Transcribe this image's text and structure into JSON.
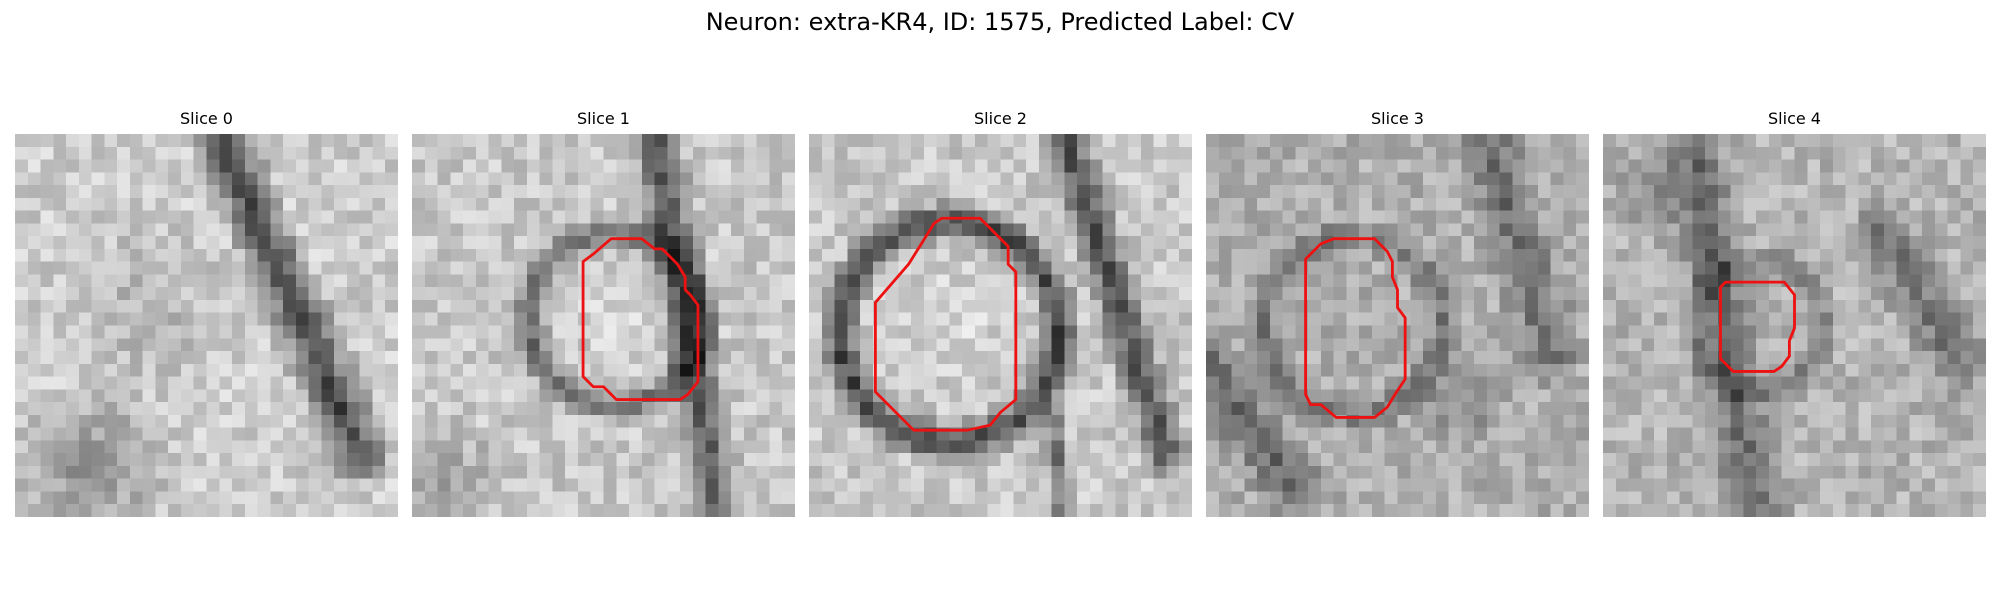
{
  "figure": {
    "title": "Neuron: extra-KR4, ID: 1575, Predicted Label: CV",
    "contour_color": "#ee1111"
  },
  "slices": [
    {
      "label": "Slice 0",
      "contour": [],
      "texture": "diagonal dark process upper right; darker blob lower left",
      "seed": 11
    },
    {
      "label": "Slice 1",
      "contour": [
        [
          14.2,
          9.4
        ],
        [
          15.6,
          8.2
        ],
        [
          18,
          8.2
        ],
        [
          19,
          9
        ],
        [
          19.6,
          9
        ],
        [
          20.8,
          10.2
        ],
        [
          21.4,
          11.2
        ],
        [
          21.4,
          12.2
        ],
        [
          21.8,
          12.6
        ],
        [
          22.4,
          13.4
        ],
        [
          22.4,
          19.4
        ],
        [
          21.6,
          20.4
        ],
        [
          21,
          20.8
        ],
        [
          16,
          20.8
        ],
        [
          15,
          19.8
        ],
        [
          14.2,
          19.8
        ],
        [
          13.4,
          19
        ],
        [
          13.4,
          10
        ]
      ],
      "texture": "bright round soma with dark rim; dark process on right",
      "seed": 23
    },
    {
      "label": "Slice 2",
      "contour": [
        [
          7.8,
          10.2
        ],
        [
          9.8,
          7
        ],
        [
          10.4,
          6.6
        ],
        [
          13.4,
          6.6
        ],
        [
          15.6,
          8.8
        ],
        [
          15.6,
          10.2
        ],
        [
          16.2,
          10.8
        ],
        [
          16.2,
          20.8
        ],
        [
          15,
          21.8
        ],
        [
          14.2,
          22.8
        ],
        [
          12.4,
          23.2
        ],
        [
          8.2,
          23.2
        ],
        [
          6.2,
          21.2
        ],
        [
          5.2,
          20.2
        ],
        [
          5.2,
          13.2
        ]
      ],
      "texture": "large bright soma with dark membrane ring",
      "seed": 37
    },
    {
      "label": "Slice 3",
      "contour": [
        [
          7.8,
          9.8
        ],
        [
          9,
          8.6
        ],
        [
          10,
          8.2
        ],
        [
          13.2,
          8.2
        ],
        [
          14.2,
          9.2
        ],
        [
          14.6,
          10
        ],
        [
          14.6,
          11.2
        ],
        [
          15,
          12.2
        ],
        [
          15,
          13.6
        ],
        [
          15.6,
          14.4
        ],
        [
          15.6,
          19.2
        ],
        [
          14.8,
          20.4
        ],
        [
          14.2,
          21.4
        ],
        [
          13.2,
          22.2
        ],
        [
          10.2,
          22.2
        ],
        [
          9,
          21.2
        ],
        [
          8.2,
          21.2
        ],
        [
          7.8,
          20.4
        ],
        [
          7.8,
          10.6
        ]
      ],
      "texture": "noisy medium-gray region with dark patches",
      "seed": 53
    },
    {
      "label": "Slice 4",
      "contour": [
        [
          9.2,
          12
        ],
        [
          9.6,
          11.6
        ],
        [
          10.4,
          11.6
        ],
        [
          14.2,
          11.6
        ],
        [
          15,
          12.6
        ],
        [
          15,
          15.2
        ],
        [
          14.6,
          16.2
        ],
        [
          14.6,
          17.4
        ],
        [
          14,
          18.2
        ],
        [
          13.4,
          18.6
        ],
        [
          10.2,
          18.6
        ],
        [
          9.2,
          17.6
        ],
        [
          9.2,
          12.6
        ]
      ],
      "texture": "noisy gray with small mid-gray soma",
      "seed": 71
    }
  ]
}
